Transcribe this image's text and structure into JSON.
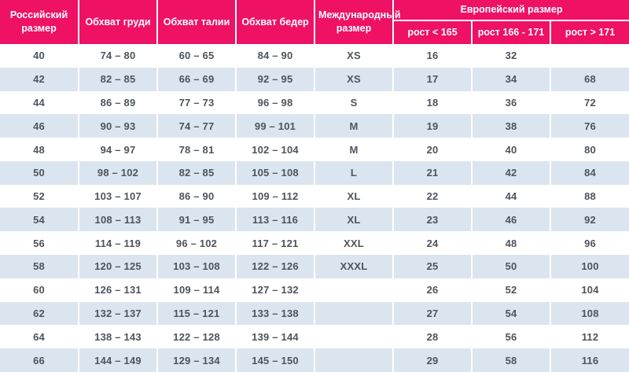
{
  "colors": {
    "header_bg": "#EE1164",
    "header_text": "#FFFFFF",
    "row_alt_bg": "#DBE5F0",
    "row_bg": "#FFFFFF",
    "body_text": "#4D545C",
    "divider": "#FFFFFF"
  },
  "chart_data": {
    "type": "table",
    "title": "",
    "header": {
      "russian_size": "Российский размер",
      "chest": "Обхват груди",
      "waist": "Обхват талии",
      "hips": "Обхват бедер",
      "international_size": "Международный размер",
      "european_size": "Европейский размер",
      "height_lt_165": "рост < 165",
      "height_166_171": "рост 166 - 171",
      "height_gt_171": "рост > 171"
    },
    "columns": [
      "Российский размер",
      "Обхват груди",
      "Обхват талии",
      "Обхват бедер",
      "Международный размер",
      "Европейский размер: рост < 165",
      "Европейский размер: рост 166 - 171",
      "Европейский размер: рост > 171"
    ],
    "rows": [
      [
        "40",
        "74 – 80",
        "60 – 65",
        "84 – 90",
        "XS",
        "16",
        "32",
        ""
      ],
      [
        "42",
        "82 – 85",
        "66 – 69",
        "92 – 95",
        "XS",
        "17",
        "34",
        "68"
      ],
      [
        "44",
        "86 – 89",
        "77 – 73",
        "96 – 98",
        "S",
        "18",
        "36",
        "72"
      ],
      [
        "46",
        "90 – 93",
        "74 – 77",
        "99 – 101",
        "M",
        "19",
        "38",
        "76"
      ],
      [
        "48",
        "94 – 97",
        "78 – 81",
        "102 – 104",
        "M",
        "20",
        "40",
        "80"
      ],
      [
        "50",
        "98 – 102",
        "82 – 85",
        "105 – 108",
        "L",
        "21",
        "42",
        "84"
      ],
      [
        "52",
        "103 – 107",
        "86 – 90",
        "109 – 112",
        "XL",
        "22",
        "44",
        "88"
      ],
      [
        "54",
        "108 – 113",
        "91 – 95",
        "113 – 116",
        "XL",
        "23",
        "46",
        "92"
      ],
      [
        "56",
        "114 – 119",
        "96 – 102",
        "117 – 121",
        "XXL",
        "24",
        "48",
        "96"
      ],
      [
        "58",
        "120 – 125",
        "103 – 108",
        "122 – 126",
        "XXXL",
        "25",
        "50",
        "100"
      ],
      [
        "60",
        "126 – 131",
        "109 – 114",
        "127 – 132",
        "",
        "26",
        "52",
        "104"
      ],
      [
        "62",
        "132 – 137",
        "115 – 121",
        "133 – 138",
        "",
        "27",
        "54",
        "108"
      ],
      [
        "64",
        "138 – 143",
        "122 – 128",
        "139 – 144",
        "",
        "28",
        "56",
        "112"
      ],
      [
        "66",
        "144 – 149",
        "129 – 134",
        "145 – 150",
        "",
        "29",
        "58",
        "116"
      ]
    ]
  }
}
